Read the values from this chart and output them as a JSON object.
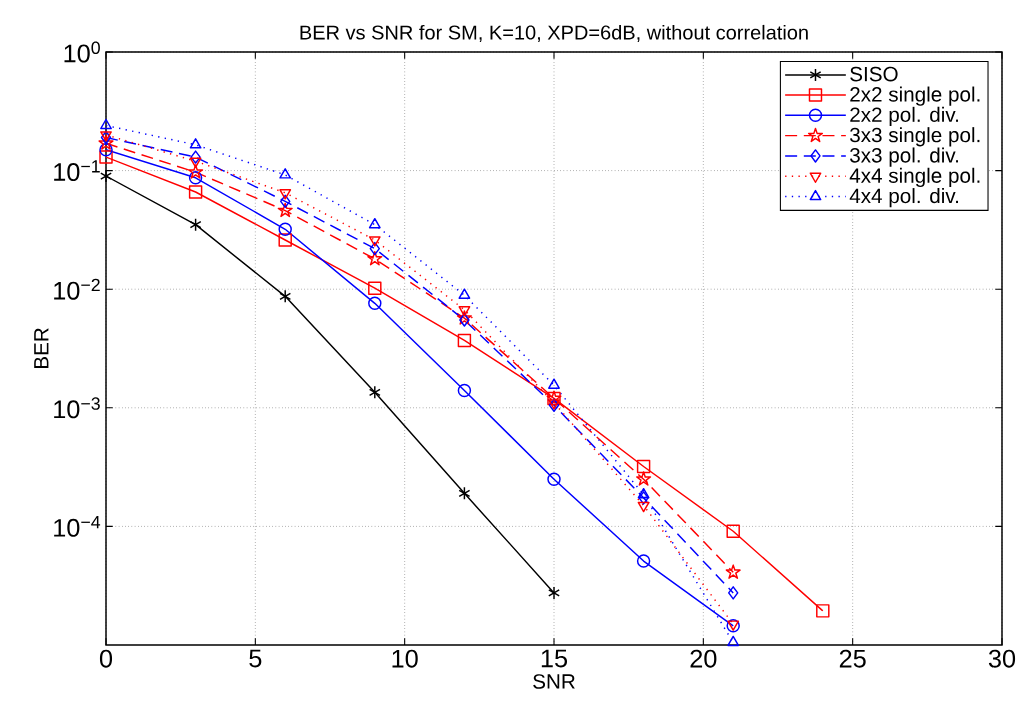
{
  "chart_data": {
    "type": "line",
    "title": "BER vs SNR for SM, K=10, XPD=6dB, without correlation",
    "xlabel": "SNR",
    "ylabel": "BER",
    "log": "y",
    "grid": true,
    "legend": "top right",
    "x": [
      0,
      3,
      6,
      9,
      12,
      15,
      18,
      21,
      24
    ],
    "xlim": [
      0,
      30
    ],
    "xticks": [
      0,
      5,
      10,
      15,
      20,
      25,
      30
    ],
    "ylim": [
      1e-05,
      1
    ],
    "yticks": [
      {
        "value": 1,
        "label": "10$^{0}$"
      },
      {
        "value": 0.1,
        "label": "10$^{−1}$"
      },
      {
        "value": 0.01,
        "label": "10$^{−2}$"
      },
      {
        "value": 0.001,
        "label": "10$^{−3}$"
      },
      {
        "value": 0.0001,
        "label": "10$^{−4}$"
      }
    ],
    "series": [
      {
        "name": "SISO",
        "color": "#000000",
        "marker": "cross",
        "line_style": "solid",
        "values": [
          0.09,
          0.035,
          0.0087,
          0.00135,
          0.00019,
          2.75e-05,
          null,
          null,
          null
        ]
      },
      {
        "name": "2x2 single pol.",
        "color": "#ff0000",
        "marker": "square",
        "line_style": "solid",
        "values": [
          0.13,
          0.066,
          0.026,
          0.0102,
          0.0037,
          0.0012,
          0.00032,
          9.1e-05,
          1.94e-05
        ]
      },
      {
        "name": "2x2 pol. div.",
        "color": "#0000ff",
        "marker": "circle",
        "line_style": "solid",
        "values": [
          0.15,
          0.087,
          0.032,
          0.0076,
          0.0014,
          0.00025,
          5.1e-05,
          1.45e-05,
          null
        ]
      },
      {
        "name": "3x3 single pol.",
        "color": "#ff0000",
        "marker": "star",
        "line_style": "dashed",
        "values": [
          0.17,
          0.097,
          0.046,
          0.018,
          0.0057,
          0.0012,
          0.00025,
          4.1e-05,
          null
        ]
      },
      {
        "name": "3x3 pol. div.",
        "color": "#0000ff",
        "marker": "diamond",
        "line_style": "dashed",
        "values": [
          0.19,
          0.13,
          0.055,
          0.022,
          0.0055,
          0.00105,
          0.000174,
          2.75e-05,
          null
        ]
      },
      {
        "name": "4x4 single pol.",
        "color": "#ff0000",
        "marker": "triangle-down",
        "line_style": "dotted",
        "values": [
          0.2,
          0.12,
          0.065,
          0.026,
          0.0067,
          0.0011,
          0.00015,
          1.5e-05,
          null
        ]
      },
      {
        "name": "4x4 pol. div.",
        "color": "#0000ff",
        "marker": "triangle",
        "line_style": "dotted",
        "values": [
          0.24,
          0.165,
          0.092,
          0.035,
          0.0089,
          0.00155,
          0.000185,
          1.05e-05,
          null
        ]
      }
    ]
  }
}
